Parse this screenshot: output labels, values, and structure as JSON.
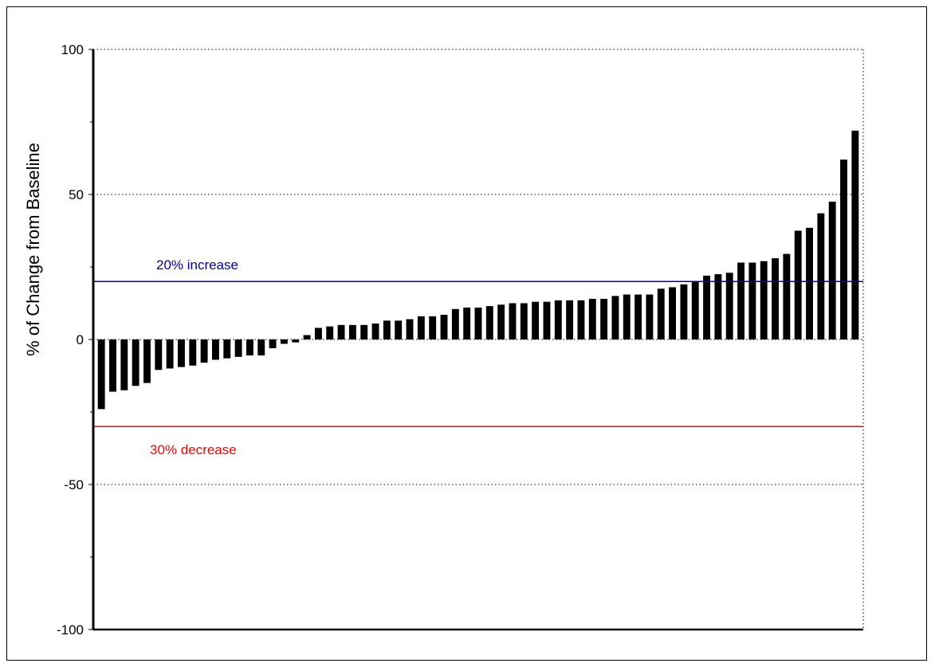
{
  "chart_data": {
    "type": "bar",
    "title": "",
    "xlabel": "",
    "ylabel": "% of Change from Baseline",
    "ylim": [
      -100,
      100
    ],
    "yticks": [
      -100,
      -50,
      0,
      50,
      100
    ],
    "yticks_minor": [
      -75,
      -25,
      25,
      75
    ],
    "y_tick_labels": [
      "-100",
      "-50",
      "0",
      "50",
      "100"
    ],
    "dotted_gridlines": [
      -50,
      0,
      50,
      100
    ],
    "sorted_ascending": true,
    "values": [
      -24,
      -18,
      -17.5,
      -16,
      -15,
      -10.5,
      -10,
      -9.5,
      -9,
      -8,
      -7,
      -6.5,
      -6,
      -5.5,
      -5.5,
      -3,
      -1.5,
      -1,
      1.5,
      4,
      4.5,
      5,
      5,
      5,
      5.5,
      6.5,
      6.5,
      7,
      8,
      8,
      8.5,
      10.5,
      11,
      11,
      11.5,
      12,
      12.5,
      12.5,
      13,
      13,
      13.5,
      13.5,
      13.5,
      14,
      14,
      15,
      15.5,
      15.5,
      15.5,
      17.5,
      18,
      19,
      20,
      22,
      22.5,
      23,
      26.5,
      26.5,
      27,
      28,
      29.5,
      37.5,
      38.5,
      43.5,
      47.5,
      62,
      72
    ],
    "bar_color": "#000000",
    "reference_lines": [
      {
        "value": 20,
        "label": "20% increase",
        "color": "#0000aa"
      },
      {
        "value": -30,
        "label": "30% decrease",
        "color": "#ff0000"
      }
    ]
  }
}
